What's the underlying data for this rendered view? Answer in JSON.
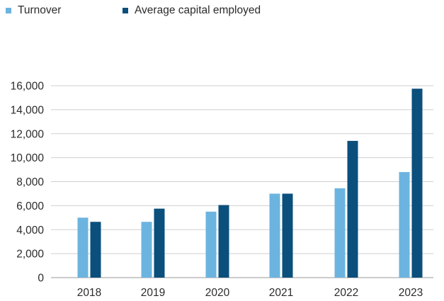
{
  "chart_data": {
    "type": "bar",
    "title": "",
    "xlabel": "",
    "ylabel": "",
    "categories": [
      "2018",
      "2019",
      "2020",
      "2021",
      "2022",
      "2023"
    ],
    "series": [
      {
        "name": "Turnover",
        "color": "#6cb4e0",
        "values": [
          5000,
          4650,
          5500,
          7000,
          7450,
          8800
        ]
      },
      {
        "name": "Average capital employed",
        "color": "#0b4f7c",
        "values": [
          4650,
          5750,
          6050,
          7000,
          11400,
          15750
        ]
      }
    ],
    "ylim": [
      0,
      16000
    ],
    "yticks": [
      0,
      2000,
      4000,
      6000,
      8000,
      10000,
      12000,
      14000,
      16000
    ],
    "ytick_labels": [
      "0",
      "2,000",
      "4,000",
      "6,000",
      "8,000",
      "10,000",
      "12,000",
      "14,000",
      "16,000"
    ],
    "grid": true,
    "legend_position": "top-left"
  }
}
